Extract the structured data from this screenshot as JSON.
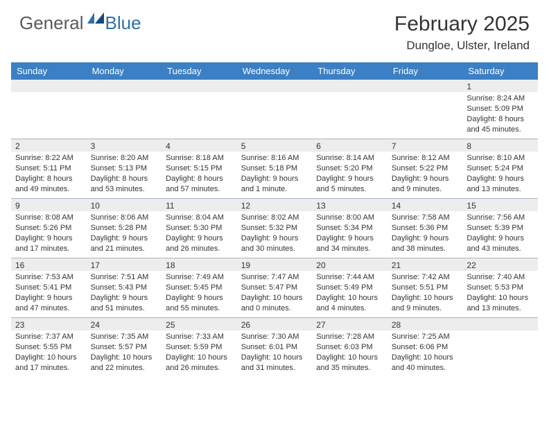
{
  "logo": {
    "general": "General",
    "blue": "Blue"
  },
  "title": "February 2025",
  "location": "Dungloe, Ulster, Ireland",
  "colors": {
    "header_bg": "#3b7fc4",
    "daynum_bg": "#ededed",
    "divider": "#a7b5c4",
    "text": "#333333",
    "logo_gray": "#5a5a5a",
    "logo_blue": "#2f6fa8",
    "background": "#ffffff"
  },
  "weekdays": [
    "Sunday",
    "Monday",
    "Tuesday",
    "Wednesday",
    "Thursday",
    "Friday",
    "Saturday"
  ],
  "weeks": [
    [
      {
        "empty": true
      },
      {
        "empty": true
      },
      {
        "empty": true
      },
      {
        "empty": true
      },
      {
        "empty": true
      },
      {
        "empty": true
      },
      {
        "day": "1",
        "sunrise": "Sunrise: 8:24 AM",
        "sunset": "Sunset: 5:09 PM",
        "daylight": "Daylight: 8 hours and 45 minutes."
      }
    ],
    [
      {
        "day": "2",
        "sunrise": "Sunrise: 8:22 AM",
        "sunset": "Sunset: 5:11 PM",
        "daylight": "Daylight: 8 hours and 49 minutes."
      },
      {
        "day": "3",
        "sunrise": "Sunrise: 8:20 AM",
        "sunset": "Sunset: 5:13 PM",
        "daylight": "Daylight: 8 hours and 53 minutes."
      },
      {
        "day": "4",
        "sunrise": "Sunrise: 8:18 AM",
        "sunset": "Sunset: 5:15 PM",
        "daylight": "Daylight: 8 hours and 57 minutes."
      },
      {
        "day": "5",
        "sunrise": "Sunrise: 8:16 AM",
        "sunset": "Sunset: 5:18 PM",
        "daylight": "Daylight: 9 hours and 1 minute."
      },
      {
        "day": "6",
        "sunrise": "Sunrise: 8:14 AM",
        "sunset": "Sunset: 5:20 PM",
        "daylight": "Daylight: 9 hours and 5 minutes."
      },
      {
        "day": "7",
        "sunrise": "Sunrise: 8:12 AM",
        "sunset": "Sunset: 5:22 PM",
        "daylight": "Daylight: 9 hours and 9 minutes."
      },
      {
        "day": "8",
        "sunrise": "Sunrise: 8:10 AM",
        "sunset": "Sunset: 5:24 PM",
        "daylight": "Daylight: 9 hours and 13 minutes."
      }
    ],
    [
      {
        "day": "9",
        "sunrise": "Sunrise: 8:08 AM",
        "sunset": "Sunset: 5:26 PM",
        "daylight": "Daylight: 9 hours and 17 minutes."
      },
      {
        "day": "10",
        "sunrise": "Sunrise: 8:06 AM",
        "sunset": "Sunset: 5:28 PM",
        "daylight": "Daylight: 9 hours and 21 minutes."
      },
      {
        "day": "11",
        "sunrise": "Sunrise: 8:04 AM",
        "sunset": "Sunset: 5:30 PM",
        "daylight": "Daylight: 9 hours and 26 minutes."
      },
      {
        "day": "12",
        "sunrise": "Sunrise: 8:02 AM",
        "sunset": "Sunset: 5:32 PM",
        "daylight": "Daylight: 9 hours and 30 minutes."
      },
      {
        "day": "13",
        "sunrise": "Sunrise: 8:00 AM",
        "sunset": "Sunset: 5:34 PM",
        "daylight": "Daylight: 9 hours and 34 minutes."
      },
      {
        "day": "14",
        "sunrise": "Sunrise: 7:58 AM",
        "sunset": "Sunset: 5:36 PM",
        "daylight": "Daylight: 9 hours and 38 minutes."
      },
      {
        "day": "15",
        "sunrise": "Sunrise: 7:56 AM",
        "sunset": "Sunset: 5:39 PM",
        "daylight": "Daylight: 9 hours and 43 minutes."
      }
    ],
    [
      {
        "day": "16",
        "sunrise": "Sunrise: 7:53 AM",
        "sunset": "Sunset: 5:41 PM",
        "daylight": "Daylight: 9 hours and 47 minutes."
      },
      {
        "day": "17",
        "sunrise": "Sunrise: 7:51 AM",
        "sunset": "Sunset: 5:43 PM",
        "daylight": "Daylight: 9 hours and 51 minutes."
      },
      {
        "day": "18",
        "sunrise": "Sunrise: 7:49 AM",
        "sunset": "Sunset: 5:45 PM",
        "daylight": "Daylight: 9 hours and 55 minutes."
      },
      {
        "day": "19",
        "sunrise": "Sunrise: 7:47 AM",
        "sunset": "Sunset: 5:47 PM",
        "daylight": "Daylight: 10 hours and 0 minutes."
      },
      {
        "day": "20",
        "sunrise": "Sunrise: 7:44 AM",
        "sunset": "Sunset: 5:49 PM",
        "daylight": "Daylight: 10 hours and 4 minutes."
      },
      {
        "day": "21",
        "sunrise": "Sunrise: 7:42 AM",
        "sunset": "Sunset: 5:51 PM",
        "daylight": "Daylight: 10 hours and 9 minutes."
      },
      {
        "day": "22",
        "sunrise": "Sunrise: 7:40 AM",
        "sunset": "Sunset: 5:53 PM",
        "daylight": "Daylight: 10 hours and 13 minutes."
      }
    ],
    [
      {
        "day": "23",
        "sunrise": "Sunrise: 7:37 AM",
        "sunset": "Sunset: 5:55 PM",
        "daylight": "Daylight: 10 hours and 17 minutes."
      },
      {
        "day": "24",
        "sunrise": "Sunrise: 7:35 AM",
        "sunset": "Sunset: 5:57 PM",
        "daylight": "Daylight: 10 hours and 22 minutes."
      },
      {
        "day": "25",
        "sunrise": "Sunrise: 7:33 AM",
        "sunset": "Sunset: 5:59 PM",
        "daylight": "Daylight: 10 hours and 26 minutes."
      },
      {
        "day": "26",
        "sunrise": "Sunrise: 7:30 AM",
        "sunset": "Sunset: 6:01 PM",
        "daylight": "Daylight: 10 hours and 31 minutes."
      },
      {
        "day": "27",
        "sunrise": "Sunrise: 7:28 AM",
        "sunset": "Sunset: 6:03 PM",
        "daylight": "Daylight: 10 hours and 35 minutes."
      },
      {
        "day": "28",
        "sunrise": "Sunrise: 7:25 AM",
        "sunset": "Sunset: 6:06 PM",
        "daylight": "Daylight: 10 hours and 40 minutes."
      },
      {
        "empty": true
      }
    ]
  ]
}
